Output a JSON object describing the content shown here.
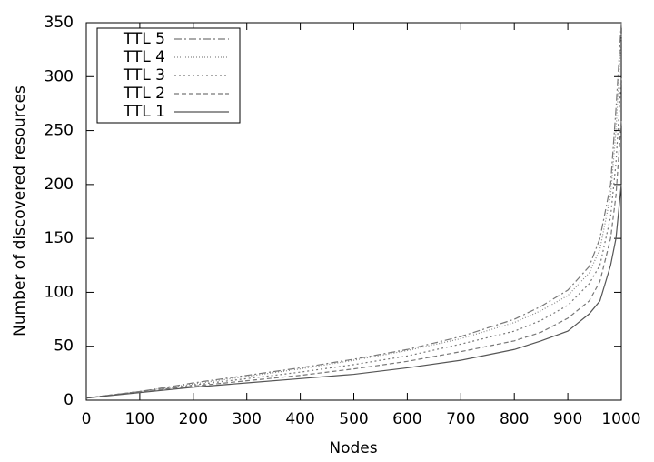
{
  "chart_data": {
    "type": "line",
    "x_label": "Nodes",
    "y_label": "Number of discovered resources",
    "x": [
      0,
      100,
      200,
      300,
      400,
      500,
      600,
      700,
      800,
      850,
      900,
      940,
      960,
      980,
      990,
      1000
    ],
    "series": [
      {
        "name": "TTL 5",
        "color": "#777777",
        "dash": "8 3 2 3",
        "values": [
          2,
          8,
          16,
          23,
          30,
          38,
          47,
          59,
          75,
          87,
          102,
          124,
          150,
          200,
          270,
          350
        ]
      },
      {
        "name": "TTL 4",
        "color": "#888888",
        "dash": "1 2",
        "values": [
          2,
          8,
          15,
          22,
          29,
          37,
          46,
          57,
          72,
          83,
          97,
          118,
          140,
          190,
          250,
          340
        ]
      },
      {
        "name": "TTL 3",
        "color": "#777777",
        "dash": "2 3",
        "values": [
          2,
          8,
          14,
          20,
          26,
          33,
          41,
          52,
          64,
          74,
          88,
          108,
          125,
          170,
          220,
          300
        ]
      },
      {
        "name": "TTL 2",
        "color": "#777777",
        "dash": "5 3",
        "values": [
          2,
          8,
          13,
          18,
          23,
          29,
          36,
          45,
          55,
          63,
          76,
          92,
          110,
          150,
          190,
          260
        ]
      },
      {
        "name": "TTL 1",
        "color": "#555555",
        "dash": "none",
        "values": [
          2,
          7,
          12,
          16,
          20,
          24,
          30,
          37,
          47,
          55,
          64,
          80,
          92,
          125,
          150,
          200
        ]
      }
    ],
    "xlim": [
      0,
      1000
    ],
    "xticks": [
      0,
      100,
      200,
      300,
      400,
      500,
      600,
      700,
      800,
      900,
      1000
    ],
    "ylim": [
      0,
      350
    ],
    "yticks": [
      0,
      50,
      100,
      150,
      200,
      250,
      300,
      350
    ],
    "legend": "top-left"
  }
}
